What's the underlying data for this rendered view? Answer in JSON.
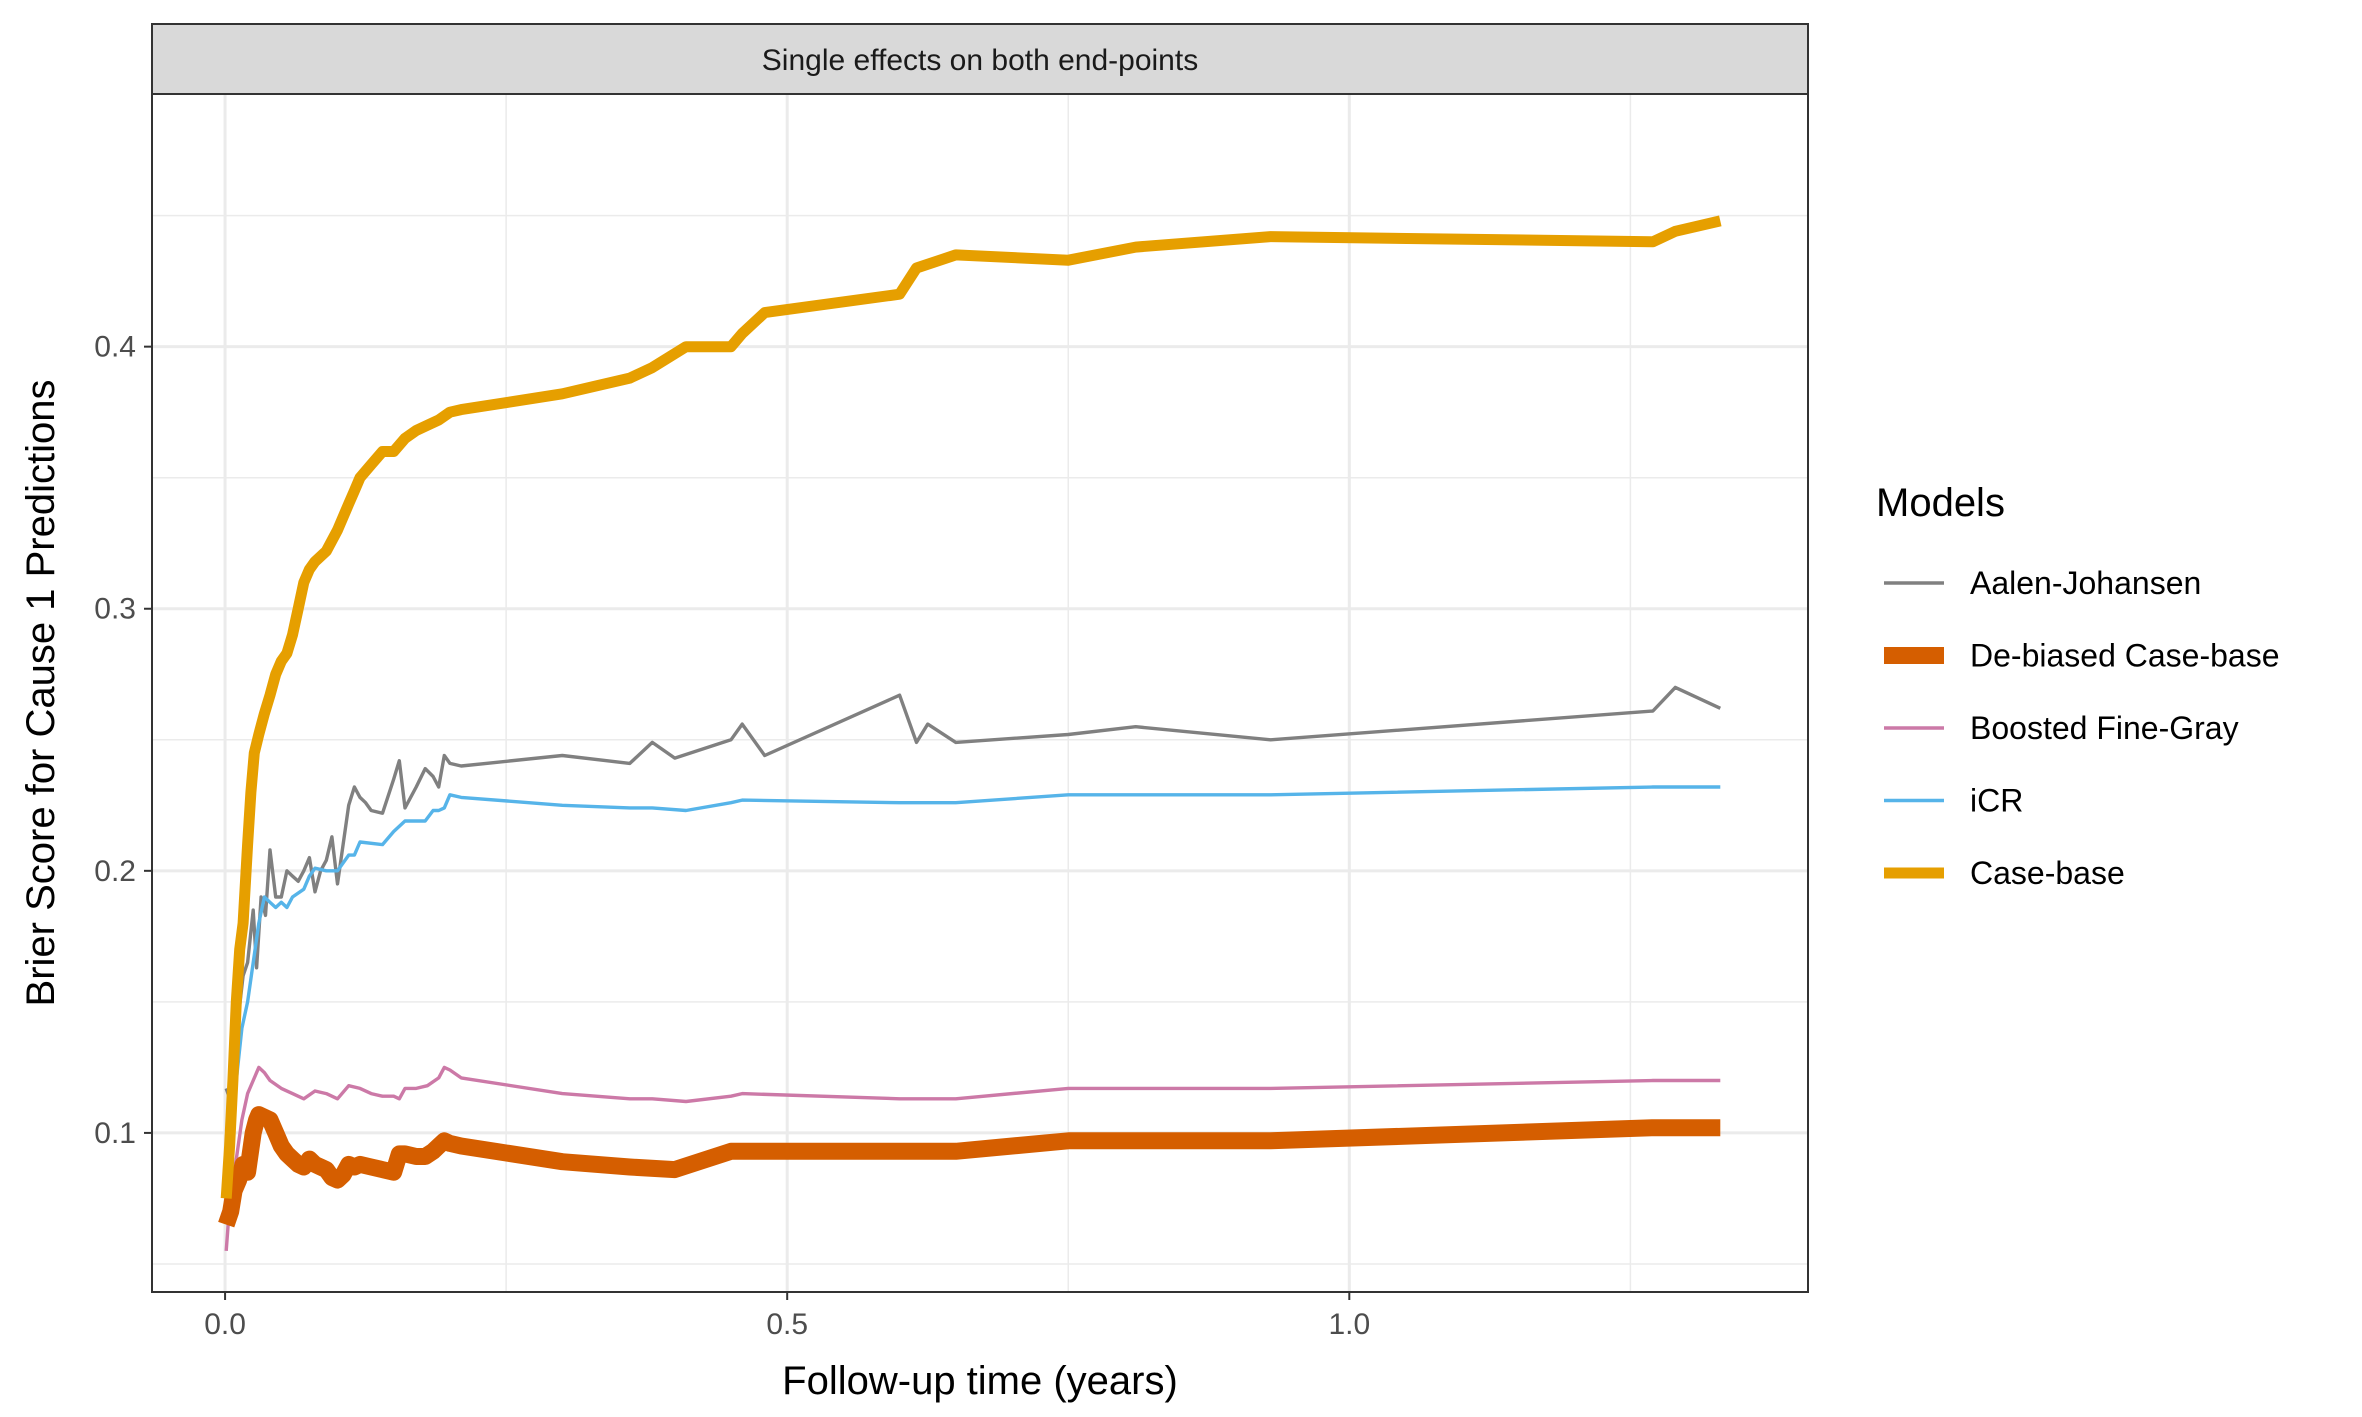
{
  "chart_data": {
    "type": "line",
    "title": "",
    "strip_label": "Single effects on both end-points",
    "xlabel": "Follow-up time (years)",
    "ylabel": "Brier Score for Cause 1 Predictions",
    "xlim": [
      -0.065,
      1.408
    ],
    "ylim": [
      0.0393,
      0.4964
    ],
    "x_ticks": [
      0.0,
      0.5,
      1.0
    ],
    "x_tick_labels": [
      "0.0",
      "0.5",
      "1.0"
    ],
    "y_ticks": [
      0.1,
      0.2,
      0.3,
      0.4
    ],
    "y_tick_labels": [
      "0.1",
      "0.2",
      "0.3",
      "0.4"
    ],
    "x_minor_ticks": [
      0.25,
      0.75,
      1.25
    ],
    "y_minor_ticks": [
      0.05,
      0.15,
      0.25,
      0.35,
      0.45
    ],
    "grid": true,
    "legend": {
      "title": "Models",
      "position": "right",
      "entries": [
        "Aalen-Johansen",
        "De-biased Case-base",
        "Boosted Fine-Gray",
        "iCR",
        "Case-base"
      ]
    },
    "series": [
      {
        "name": "Aalen-Johansen",
        "color": "#808080",
        "width": "thin",
        "x": [
          0.001,
          0.005,
          0.008,
          0.012,
          0.016,
          0.02,
          0.025,
          0.028,
          0.032,
          0.036,
          0.04,
          0.045,
          0.05,
          0.055,
          0.06,
          0.065,
          0.07,
          0.075,
          0.08,
          0.085,
          0.09,
          0.095,
          0.1,
          0.105,
          0.11,
          0.115,
          0.12,
          0.125,
          0.13,
          0.14,
          0.15,
          0.155,
          0.16,
          0.17,
          0.178,
          0.185,
          0.19,
          0.195,
          0.2,
          0.21,
          0.3,
          0.36,
          0.38,
          0.4,
          0.45,
          0.46,
          0.48,
          0.6,
          0.615,
          0.625,
          0.65,
          0.75,
          0.81,
          0.93,
          1.27,
          1.29,
          1.33
        ],
        "y": [
          0.117,
          0.112,
          0.13,
          0.145,
          0.16,
          0.165,
          0.185,
          0.163,
          0.19,
          0.183,
          0.208,
          0.19,
          0.19,
          0.2,
          0.198,
          0.196,
          0.2,
          0.205,
          0.192,
          0.2,
          0.204,
          0.213,
          0.195,
          0.21,
          0.225,
          0.232,
          0.228,
          0.226,
          0.223,
          0.222,
          0.235,
          0.242,
          0.224,
          0.232,
          0.239,
          0.236,
          0.232,
          0.244,
          0.241,
          0.24,
          0.244,
          0.241,
          0.249,
          0.243,
          0.25,
          0.256,
          0.244,
          0.267,
          0.249,
          0.256,
          0.249,
          0.252,
          0.255,
          0.25,
          0.261,
          0.27,
          0.262
        ]
      },
      {
        "name": "De-biased Case-base",
        "color": "#D55E00",
        "width": "thickest",
        "x": [
          0.001,
          0.005,
          0.008,
          0.012,
          0.016,
          0.02,
          0.025,
          0.028,
          0.03,
          0.035,
          0.04,
          0.045,
          0.05,
          0.055,
          0.06,
          0.065,
          0.07,
          0.075,
          0.08,
          0.085,
          0.09,
          0.095,
          0.1,
          0.105,
          0.11,
          0.115,
          0.12,
          0.13,
          0.14,
          0.15,
          0.155,
          0.16,
          0.17,
          0.178,
          0.185,
          0.19,
          0.195,
          0.2,
          0.21,
          0.3,
          0.36,
          0.4,
          0.45,
          0.46,
          0.48,
          0.6,
          0.65,
          0.75,
          0.81,
          0.93,
          1.27,
          1.33
        ],
        "y": [
          0.065,
          0.07,
          0.078,
          0.082,
          0.088,
          0.085,
          0.1,
          0.105,
          0.107,
          0.106,
          0.105,
          0.1,
          0.095,
          0.092,
          0.09,
          0.088,
          0.087,
          0.09,
          0.088,
          0.087,
          0.086,
          0.083,
          0.082,
          0.084,
          0.088,
          0.087,
          0.088,
          0.087,
          0.086,
          0.085,
          0.092,
          0.092,
          0.091,
          0.091,
          0.093,
          0.095,
          0.097,
          0.096,
          0.095,
          0.089,
          0.087,
          0.086,
          0.093,
          0.093,
          0.093,
          0.093,
          0.093,
          0.097,
          0.097,
          0.097,
          0.102,
          0.102
        ]
      },
      {
        "name": "Boosted Fine-Gray",
        "color": "#CC79A7",
        "width": "thin",
        "x": [
          0.001,
          0.005,
          0.01,
          0.015,
          0.02,
          0.025,
          0.03,
          0.035,
          0.04,
          0.05,
          0.06,
          0.07,
          0.08,
          0.09,
          0.1,
          0.11,
          0.12,
          0.13,
          0.14,
          0.15,
          0.155,
          0.16,
          0.17,
          0.18,
          0.19,
          0.195,
          0.2,
          0.21,
          0.3,
          0.36,
          0.38,
          0.41,
          0.45,
          0.46,
          0.6,
          0.65,
          0.75,
          0.93,
          1.27,
          1.33
        ],
        "y": [
          0.055,
          0.078,
          0.09,
          0.105,
          0.115,
          0.12,
          0.125,
          0.123,
          0.12,
          0.117,
          0.115,
          0.113,
          0.116,
          0.115,
          0.113,
          0.118,
          0.117,
          0.115,
          0.114,
          0.114,
          0.113,
          0.117,
          0.117,
          0.118,
          0.121,
          0.125,
          0.124,
          0.121,
          0.115,
          0.113,
          0.113,
          0.112,
          0.114,
          0.115,
          0.113,
          0.113,
          0.117,
          0.117,
          0.12,
          0.12
        ]
      },
      {
        "name": "iCR",
        "color": "#56B4E9",
        "width": "thin",
        "x": [
          0.001,
          0.005,
          0.01,
          0.015,
          0.02,
          0.025,
          0.03,
          0.035,
          0.04,
          0.045,
          0.05,
          0.055,
          0.06,
          0.07,
          0.075,
          0.08,
          0.09,
          0.1,
          0.11,
          0.115,
          0.12,
          0.14,
          0.15,
          0.16,
          0.17,
          0.178,
          0.185,
          0.19,
          0.195,
          0.2,
          0.21,
          0.3,
          0.36,
          0.38,
          0.41,
          0.45,
          0.46,
          0.6,
          0.65,
          0.75,
          0.93,
          1.27,
          1.33
        ],
        "y": [
          0.075,
          0.09,
          0.12,
          0.14,
          0.15,
          0.165,
          0.18,
          0.19,
          0.188,
          0.186,
          0.188,
          0.186,
          0.19,
          0.193,
          0.198,
          0.201,
          0.2,
          0.2,
          0.206,
          0.206,
          0.211,
          0.21,
          0.215,
          0.219,
          0.219,
          0.219,
          0.223,
          0.223,
          0.224,
          0.229,
          0.228,
          0.225,
          0.224,
          0.224,
          0.223,
          0.226,
          0.227,
          0.226,
          0.226,
          0.229,
          0.229,
          0.232,
          0.232
        ]
      },
      {
        "name": "Case-base",
        "color": "#E69F00",
        "width": "thick",
        "x": [
          0.001,
          0.004,
          0.007,
          0.01,
          0.013,
          0.016,
          0.02,
          0.023,
          0.026,
          0.03,
          0.035,
          0.04,
          0.045,
          0.05,
          0.055,
          0.06,
          0.065,
          0.07,
          0.075,
          0.08,
          0.09,
          0.1,
          0.11,
          0.115,
          0.12,
          0.13,
          0.14,
          0.15,
          0.16,
          0.17,
          0.18,
          0.19,
          0.2,
          0.21,
          0.3,
          0.36,
          0.38,
          0.41,
          0.45,
          0.46,
          0.48,
          0.6,
          0.615,
          0.65,
          0.75,
          0.81,
          0.93,
          1.27,
          1.29,
          1.33
        ],
        "y": [
          0.075,
          0.095,
          0.12,
          0.15,
          0.17,
          0.18,
          0.21,
          0.23,
          0.245,
          0.252,
          0.26,
          0.267,
          0.275,
          0.28,
          0.283,
          0.29,
          0.3,
          0.31,
          0.315,
          0.318,
          0.322,
          0.33,
          0.34,
          0.345,
          0.35,
          0.355,
          0.36,
          0.36,
          0.365,
          0.368,
          0.37,
          0.372,
          0.375,
          0.376,
          0.382,
          0.388,
          0.392,
          0.4,
          0.4,
          0.405,
          0.413,
          0.42,
          0.43,
          0.435,
          0.433,
          0.438,
          0.442,
          0.44,
          0.444,
          0.448
        ]
      }
    ]
  }
}
